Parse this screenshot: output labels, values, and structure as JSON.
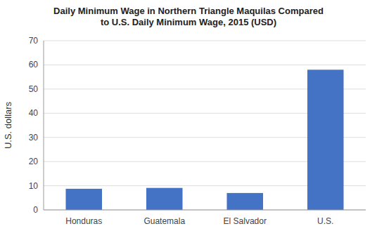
{
  "chart_data": {
    "type": "bar",
    "title": "Daily Minimum Wage in Northern Triangle Maquilas Compared\nto U.S. Daily Minimum Wage, 2015 (USD)",
    "categories": [
      "Honduras",
      "Guatemala",
      "El Salvador",
      "U.S."
    ],
    "values": [
      8.75,
      9.1,
      7.0,
      58.0
    ],
    "color": "#4472C4",
    "ylabel": "U.S. dollars",
    "ylim": [
      0,
      70
    ],
    "yticks": [
      0,
      10,
      20,
      30,
      40,
      50,
      60,
      70
    ],
    "grid": true
  }
}
